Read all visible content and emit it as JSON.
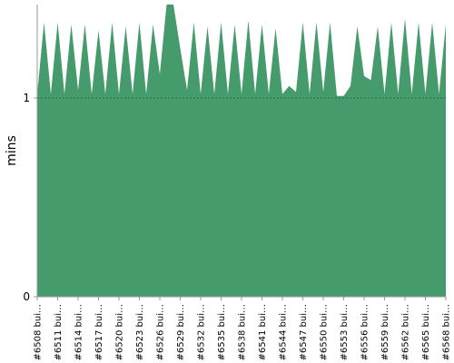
{
  "chart_data": {
    "type": "area",
    "y_label": "mins",
    "categories": [
      "#6508 bui…",
      null,
      null,
      "#6511 bui…",
      null,
      null,
      "#6514 bui…",
      null,
      null,
      "#6517 bui…",
      null,
      null,
      "#6520 bui…",
      null,
      null,
      "#6523 bui…",
      null,
      null,
      "#6526 bui…",
      null,
      null,
      "#6529 bui…",
      null,
      null,
      "#6532 bui…",
      null,
      null,
      "#6535 bui…",
      null,
      null,
      "#6538 bui…",
      null,
      null,
      "#6541 bui…",
      null,
      null,
      "#6544 bui…",
      null,
      null,
      "#6547 bui…",
      null,
      null,
      "#6550 bui…",
      null,
      null,
      "#6553 bui…",
      null,
      null,
      "#6556 bui…",
      null,
      null,
      "#6559 bui…",
      null,
      null,
      "#6562 bui…",
      null,
      null,
      "#6565 bui…",
      null,
      null,
      "#6568 bui…"
    ],
    "values": [
      1.02,
      1.38,
      1.02,
      1.38,
      1.02,
      1.37,
      1.04,
      1.37,
      1.02,
      1.34,
      1.02,
      1.38,
      1.02,
      1.36,
      1.02,
      1.38,
      1.02,
      1.37,
      1.12,
      1.47,
      1.47,
      1.25,
      1.04,
      1.38,
      1.02,
      1.36,
      1.02,
      1.38,
      1.02,
      1.37,
      1.02,
      1.39,
      1.02,
      1.37,
      1.02,
      1.35,
      1.02,
      1.06,
      1.03,
      1.38,
      1.02,
      1.38,
      1.03,
      1.38,
      1.01,
      1.01,
      1.06,
      1.36,
      1.11,
      1.09,
      1.36,
      1.02,
      1.38,
      1.02,
      1.4,
      1.02,
      1.38,
      1.02,
      1.38,
      1.02,
      1.37
    ],
    "color": "#469b6c",
    "ylim": [
      0,
      1.47
    ],
    "yticks": [
      0,
      1
    ],
    "grid": true
  }
}
